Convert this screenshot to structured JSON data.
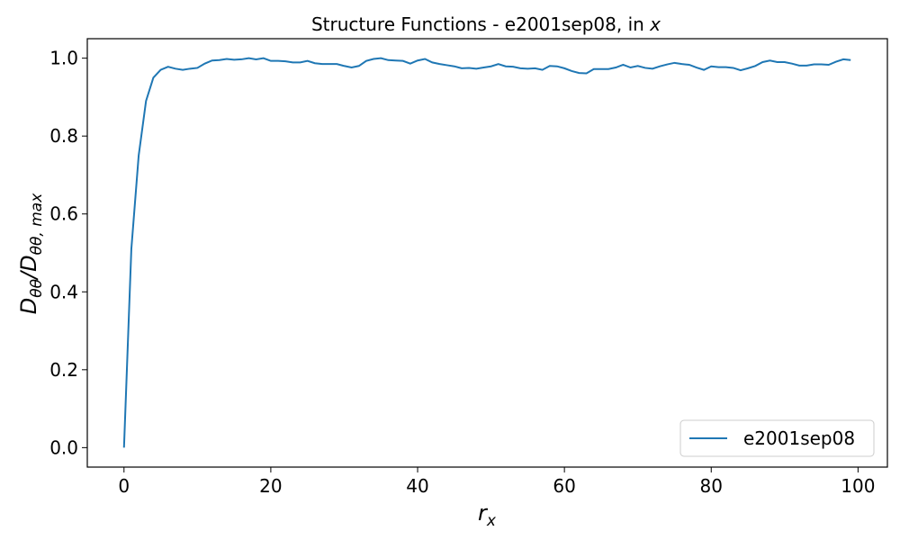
{
  "chart_data": {
    "type": "line",
    "title_main": "Structure Functions - e2001sep08, in ",
    "title_var": "x",
    "xlabel_base": "r",
    "xlabel_sub": "x",
    "ylabel_main": "D",
    "ylabel_sub1": "θθ",
    "ylabel_sep": "/D",
    "ylabel_sub2": "θθ, max",
    "xlim": [
      -5,
      104
    ],
    "ylim": [
      -0.05,
      1.05
    ],
    "x_ticks": [
      0,
      20,
      40,
      60,
      80,
      100
    ],
    "y_ticks": [
      0.0,
      0.2,
      0.4,
      0.6,
      0.8,
      1.0
    ],
    "x_tick_labels": [
      "0",
      "20",
      "40",
      "60",
      "80",
      "100"
    ],
    "y_tick_labels": [
      "0.0",
      "0.2",
      "0.4",
      "0.6",
      "0.8",
      "1.0"
    ],
    "legend_position": "lower-right",
    "series": [
      {
        "name": "e2001sep08",
        "color": "#1f77b4",
        "x": [
          0,
          1,
          2,
          3,
          4,
          5,
          6,
          7,
          8,
          9,
          10,
          11,
          12,
          13,
          14,
          15,
          16,
          17,
          18,
          19,
          20,
          21,
          22,
          23,
          24,
          25,
          26,
          27,
          28,
          29,
          30,
          31,
          32,
          33,
          34,
          35,
          36,
          37,
          38,
          39,
          40,
          41,
          42,
          43,
          44,
          45,
          46,
          47,
          48,
          49,
          50,
          51,
          52,
          53,
          54,
          55,
          56,
          57,
          58,
          59,
          60,
          61,
          62,
          63,
          64,
          65,
          66,
          67,
          68,
          69,
          70,
          71,
          72,
          73,
          74,
          75,
          76,
          77,
          78,
          79,
          80,
          81,
          82,
          83,
          84,
          85,
          86,
          87,
          88,
          89,
          90,
          91,
          92,
          93,
          94,
          95,
          96,
          97,
          98,
          99
        ],
        "y": [
          0.0,
          0.51,
          0.75,
          0.89,
          0.95,
          0.97,
          0.978,
          0.973,
          0.97,
          0.973,
          0.975,
          0.986,
          0.994,
          0.995,
          0.998,
          0.996,
          0.997,
          1.0,
          0.997,
          1.0,
          0.993,
          0.993,
          0.992,
          0.989,
          0.989,
          0.993,
          0.987,
          0.985,
          0.985,
          0.985,
          0.98,
          0.976,
          0.98,
          0.993,
          0.998,
          1.0,
          0.995,
          0.994,
          0.993,
          0.986,
          0.994,
          0.998,
          0.989,
          0.985,
          0.982,
          0.979,
          0.974,
          0.975,
          0.973,
          0.976,
          0.979,
          0.985,
          0.979,
          0.978,
          0.974,
          0.973,
          0.974,
          0.97,
          0.98,
          0.979,
          0.974,
          0.967,
          0.962,
          0.961,
          0.972,
          0.972,
          0.972,
          0.976,
          0.983,
          0.976,
          0.98,
          0.975,
          0.973,
          0.979,
          0.984,
          0.988,
          0.985,
          0.983,
          0.976,
          0.97,
          0.979,
          0.977,
          0.977,
          0.975,
          0.969,
          0.974,
          0.98,
          0.99,
          0.994,
          0.99,
          0.99,
          0.986,
          0.981,
          0.981,
          0.984,
          0.984,
          0.983,
          0.991,
          0.997,
          0.995
        ]
      }
    ]
  }
}
